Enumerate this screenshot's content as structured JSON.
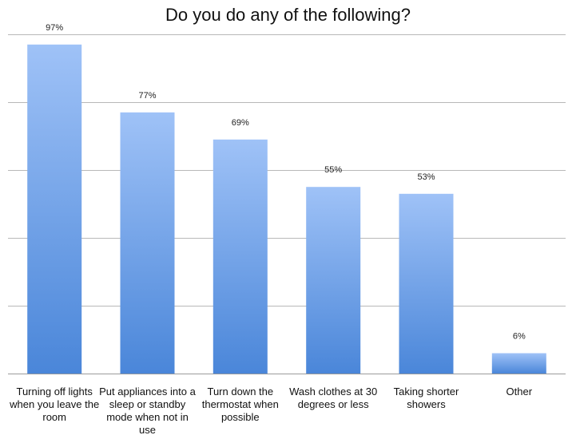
{
  "chart_data": {
    "type": "bar",
    "title": "Do you do any of the following?",
    "categories": [
      "Turning off lights when you leave the room",
      "Put appliances into a sleep or standby mode when not in use",
      "Turn down the thermostat when possible",
      "Wash clothes at 30 degrees or less",
      "Taking shorter showers",
      "Other"
    ],
    "values": [
      97,
      77,
      69,
      55,
      53,
      6
    ],
    "data_labels": [
      "97%",
      "77%",
      "69%",
      "55%",
      "53%",
      "6%"
    ],
    "ylim": [
      0,
      100
    ],
    "grid": true,
    "legend": "none",
    "colors": {
      "bar_top": "#9fc2f7",
      "bar_bottom": "#4a86d9",
      "grid": "#b8b8b8",
      "axis": "#9a9a9a"
    }
  }
}
